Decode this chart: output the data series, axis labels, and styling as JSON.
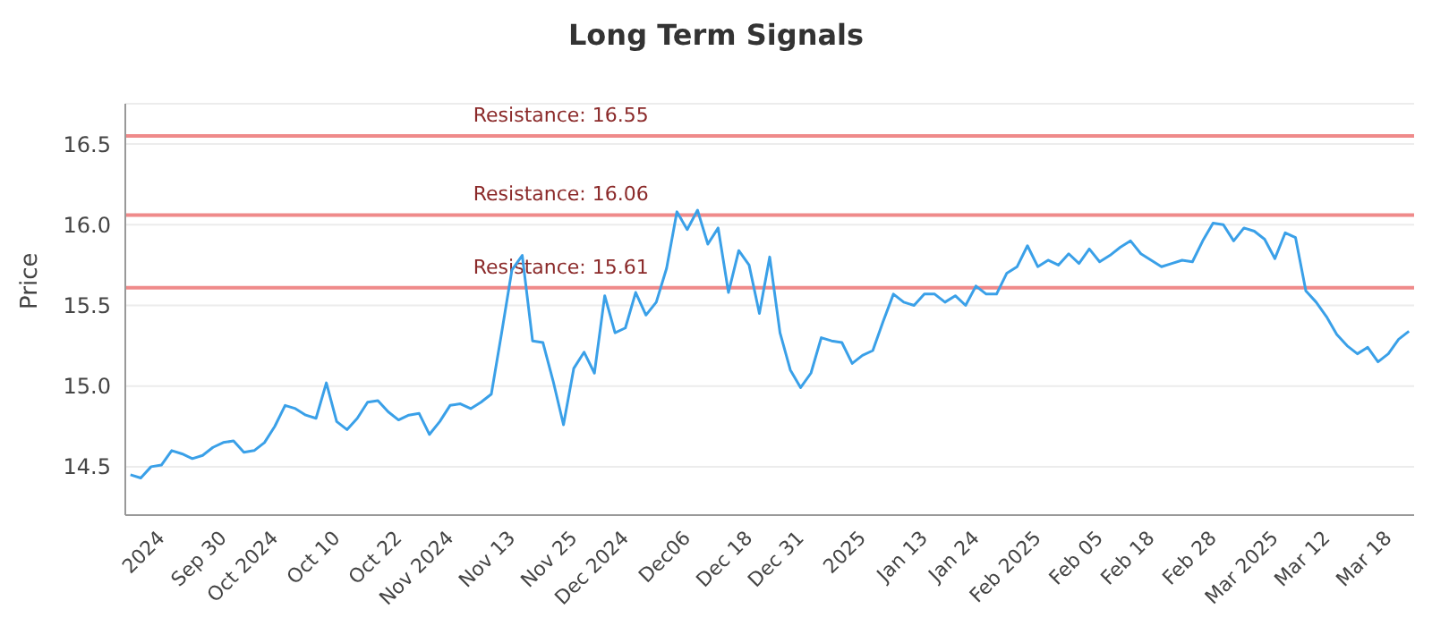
{
  "chart_data": {
    "type": "line",
    "title": "Long Term Signals",
    "ylabel": "Price",
    "categories": [
      null,
      null,
      null,
      "2024",
      null,
      null,
      null,
      null,
      null,
      "Sep 30",
      null,
      null,
      null,
      null,
      "Oct 2024",
      null,
      null,
      null,
      null,
      null,
      "Oct 10",
      null,
      null,
      null,
      null,
      null,
      "Oct 22",
      null,
      null,
      null,
      null,
      "Nov 2024",
      null,
      null,
      null,
      null,
      null,
      "Nov 13",
      null,
      null,
      null,
      null,
      null,
      "Nov 25",
      null,
      null,
      null,
      null,
      "Dec 2024",
      null,
      null,
      null,
      null,
      null,
      "Dec06",
      null,
      null,
      null,
      null,
      null,
      "Dec 18",
      null,
      null,
      null,
      null,
      "Dec 31",
      null,
      null,
      null,
      null,
      null,
      "2025",
      null,
      null,
      null,
      null,
      null,
      "Jan 13",
      null,
      null,
      null,
      null,
      "Jan 24",
      null,
      null,
      null,
      null,
      null,
      "Feb 2025",
      null,
      null,
      null,
      null,
      null,
      "Feb 05",
      null,
      null,
      null,
      null,
      "Feb 18",
      null,
      null,
      null,
      null,
      null,
      "Feb 28",
      null,
      null,
      null,
      null,
      null,
      "Mar 2025",
      null,
      null,
      null,
      null,
      "Mar 12",
      null,
      null,
      null,
      null,
      null,
      "Mar 18",
      null,
      null
    ],
    "series": [
      {
        "color": "#3aa0e8",
        "values": [
          14.45,
          14.43,
          14.5,
          14.51,
          14.6,
          14.58,
          14.55,
          14.57,
          14.62,
          14.65,
          14.66,
          14.59,
          14.6,
          14.65,
          14.75,
          14.88,
          14.86,
          14.82,
          14.8,
          15.02,
          14.78,
          14.73,
          14.8,
          14.9,
          14.91,
          14.84,
          14.79,
          14.82,
          14.83,
          14.7,
          14.78,
          14.88,
          14.89,
          14.86,
          14.9,
          14.95,
          15.33,
          15.72,
          15.81,
          15.28,
          15.27,
          15.03,
          14.76,
          15.11,
          15.21,
          15.08,
          15.56,
          15.33,
          15.36,
          15.58,
          15.44,
          15.52,
          15.73,
          16.08,
          15.97,
          16.09,
          15.88,
          15.98,
          15.58,
          15.84,
          15.75,
          15.45,
          15.8,
          15.33,
          15.1,
          14.99,
          15.08,
          15.3,
          15.28,
          15.27,
          15.14,
          15.19,
          15.22,
          15.4,
          15.57,
          15.52,
          15.5,
          15.57,
          15.57,
          15.52,
          15.56,
          15.5,
          15.62,
          15.57,
          15.57,
          15.7,
          15.74,
          15.87,
          15.74,
          15.78,
          15.75,
          15.82,
          15.76,
          15.85,
          15.77,
          15.81,
          15.86,
          15.9,
          15.82,
          15.78,
          15.74,
          15.76,
          15.78,
          15.77,
          15.9,
          16.01,
          16.0,
          15.9,
          15.98,
          15.96,
          15.91,
          15.79,
          15.95,
          15.92,
          15.59,
          15.52,
          15.43,
          15.32,
          15.25,
          15.2,
          15.24,
          15.15,
          15.2,
          15.29,
          15.34
        ]
      }
    ],
    "ylim": [
      14.2,
      16.75
    ],
    "yticks": [
      14.5,
      {
        "value": 15,
        "label": "15.0"
      },
      15.5,
      {
        "value": 16,
        "label": "16.0"
      },
      16.5
    ],
    "grid": "y",
    "marker": "none",
    "line_style": "solid",
    "ref_lines": [
      {
        "axis": "y",
        "value": 16.55,
        "label": "Resistance: 16.55",
        "color": "#ef8a8a"
      },
      {
        "axis": "y",
        "value": 16.06,
        "label": "Resistance: 16.06",
        "color": "#ef8a8a"
      },
      {
        "axis": "y",
        "value": 15.61,
        "label": "Resistance: 15.61",
        "color": "#ef8a8a"
      }
    ]
  }
}
